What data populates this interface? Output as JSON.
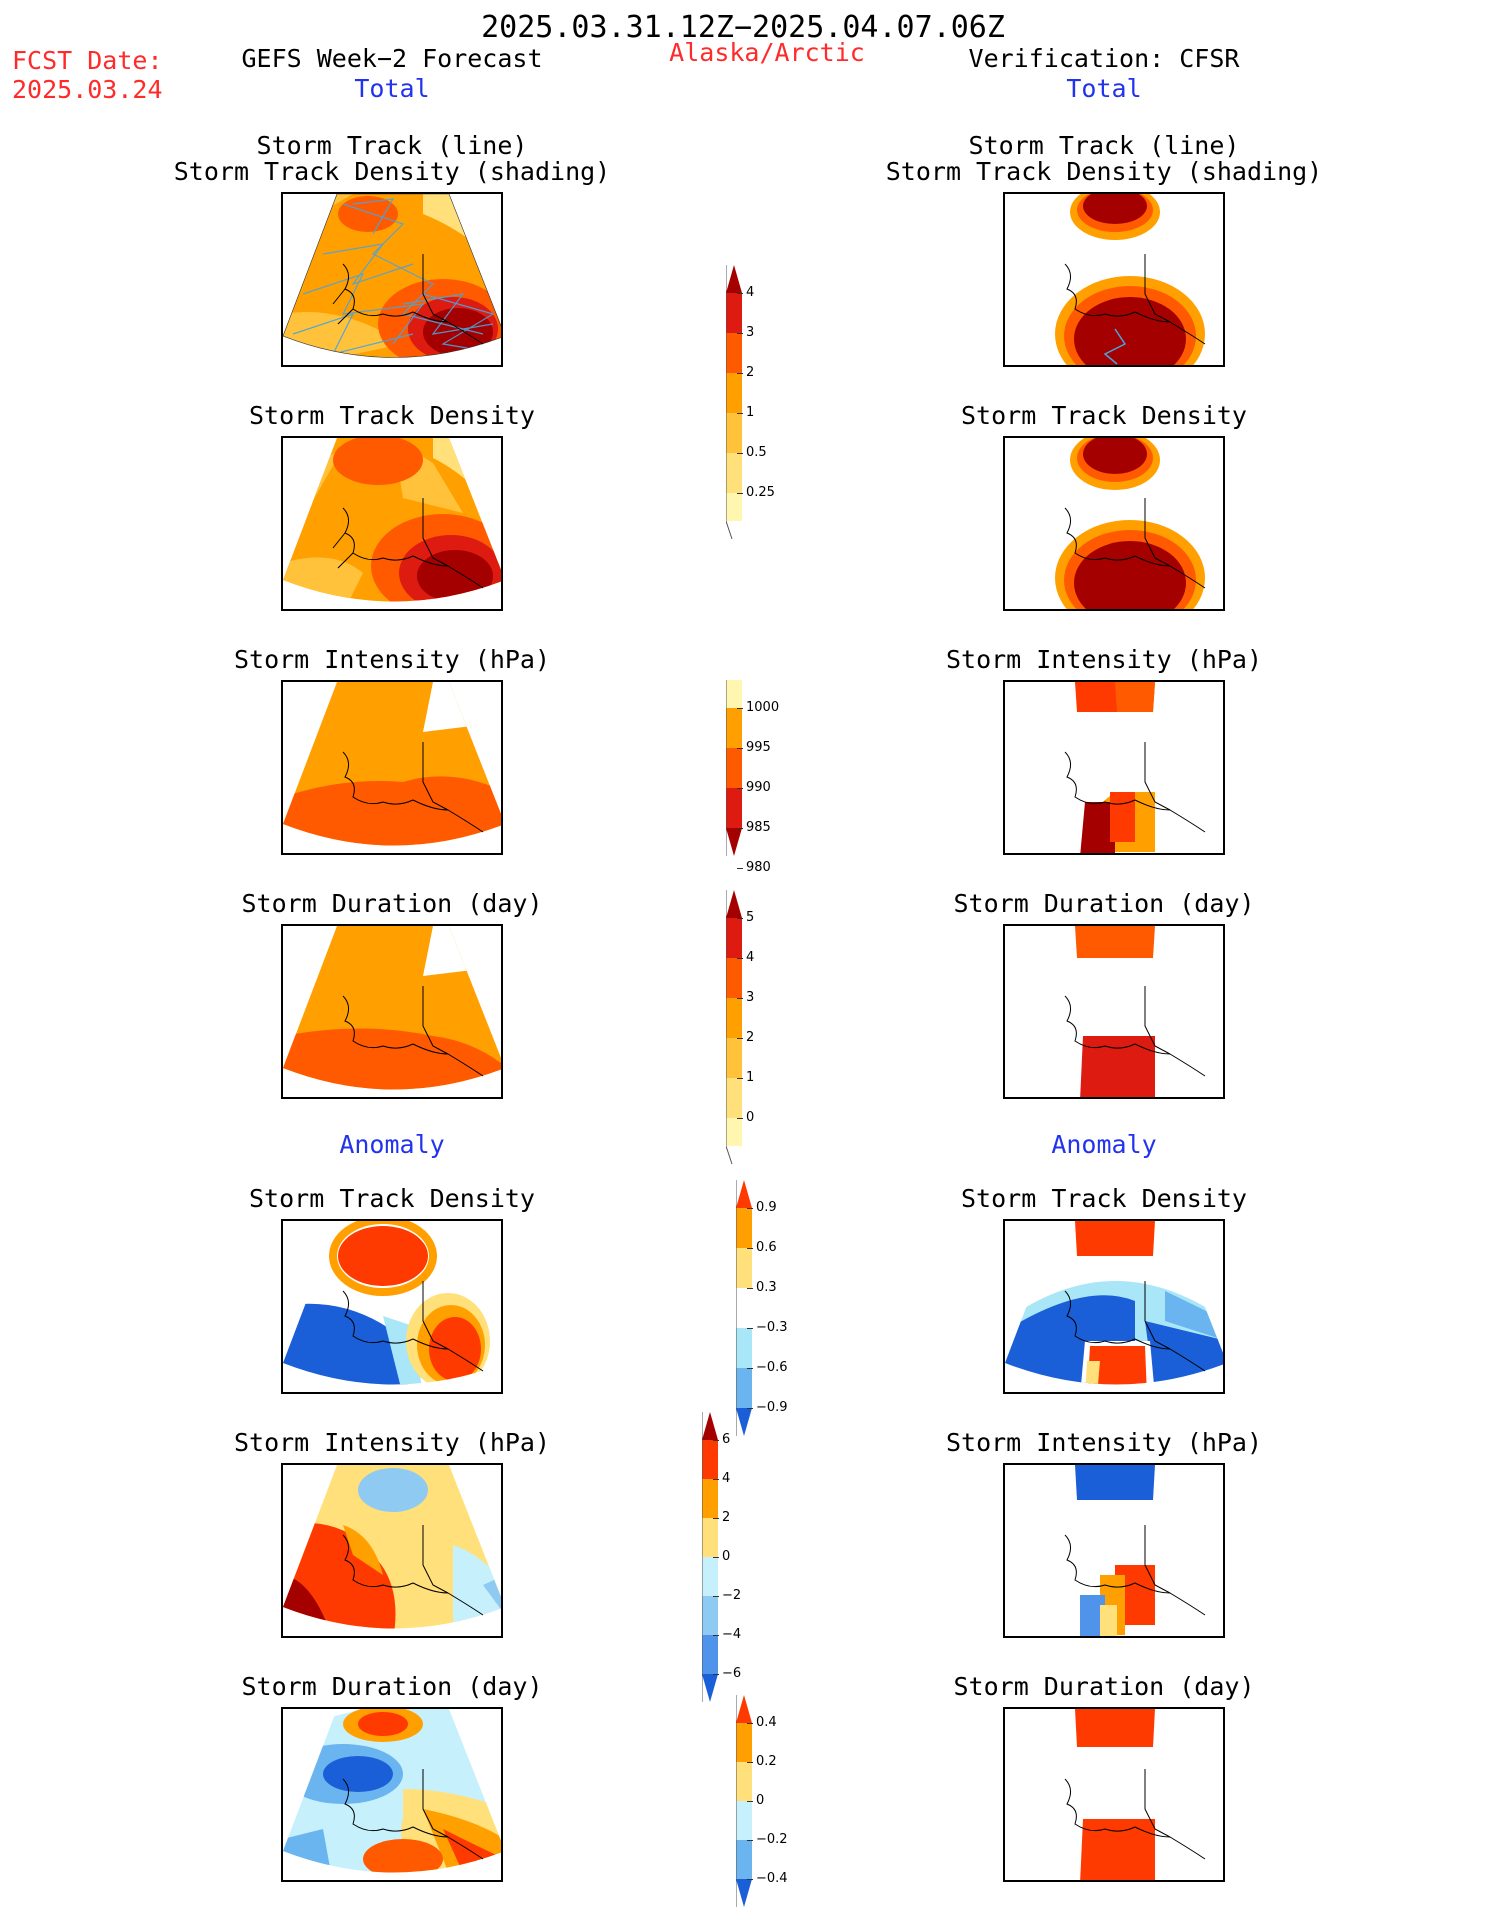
{
  "header": {
    "period": "2025.03.31.12Z−2025.04.07.06Z",
    "fcst_label": "FCST Date:",
    "fcst_date": "2025.03.24",
    "left_title": "GEFS Week−2 Forecast",
    "region": "Alaska/Arctic",
    "right_title": "Verification: CFSR"
  },
  "sections": {
    "total": "Total",
    "anomaly": "Anomaly"
  },
  "panel_titles": {
    "track_line": "Storm Track (line)",
    "track_shading": "Storm Track Density (shading)",
    "density": "Storm Track Density",
    "intensity": "Storm Intensity (hPa)",
    "duration": "Storm Duration (day)"
  },
  "colorbars": [
    {
      "id": "density-total",
      "ticks": [
        "4",
        "3",
        "2",
        "1",
        "0.5",
        "0.25"
      ],
      "colors": [
        "#a50000",
        "#dd1b10",
        "#ff5a00",
        "#ffa000",
        "#ffc23a",
        "#ffe07a",
        "#fff7b0"
      ]
    },
    {
      "id": "intensity-total",
      "ticks": [
        "1000",
        "995",
        "990",
        "985",
        "980"
      ],
      "colors": [
        "#fff7b0",
        "#ffa000",
        "#ff5a00",
        "#dd1b10",
        "#a50000"
      ]
    },
    {
      "id": "duration-total",
      "ticks": [
        "5",
        "4",
        "3",
        "2",
        "1",
        "0"
      ],
      "colors": [
        "#a50000",
        "#dd1b10",
        "#ff5a00",
        "#ffa000",
        "#ffc23a",
        "#ffe07a",
        "#fff7b0"
      ]
    },
    {
      "id": "density-anom",
      "ticks": [
        "0.9",
        "0.6",
        "0.3",
        "−0.3",
        "−0.6",
        "−0.9"
      ],
      "colors": [
        "#ff3a00",
        "#ffa000",
        "#ffe07a",
        "#ffffff",
        "#a8e6f8",
        "#6ab4f0",
        "#1a5fd8"
      ]
    },
    {
      "id": "intensity-anom",
      "ticks": [
        "6",
        "4",
        "2",
        "0",
        "−2",
        "−4",
        "−6"
      ],
      "colors": [
        "#a50000",
        "#ff3a00",
        "#ffa000",
        "#ffe07a",
        "#c6f0fb",
        "#8fcaf3",
        "#4f93ea",
        "#1a5fd8"
      ]
    },
    {
      "id": "duration-anom",
      "ticks": [
        "0.4",
        "0.2",
        "0",
        "−0.2",
        "−0.4"
      ],
      "colors": [
        "#ff3a00",
        "#ffa000",
        "#ffe07a",
        "#c6f0fb",
        "#6ab4f0",
        "#1a5fd8"
      ]
    }
  ],
  "palette": {
    "dark_red": "#a50000",
    "red": "#dd1b10",
    "red_orange": "#ff5a00",
    "orange": "#ffa000",
    "light_orange": "#ffc23a",
    "yellow": "#ffe07a",
    "pale_yellow": "#fff7b0",
    "light_blue": "#c6f0fb",
    "blue": "#4f93ea",
    "dark_blue": "#1a5fd8",
    "track_line": "#4aa3df"
  }
}
